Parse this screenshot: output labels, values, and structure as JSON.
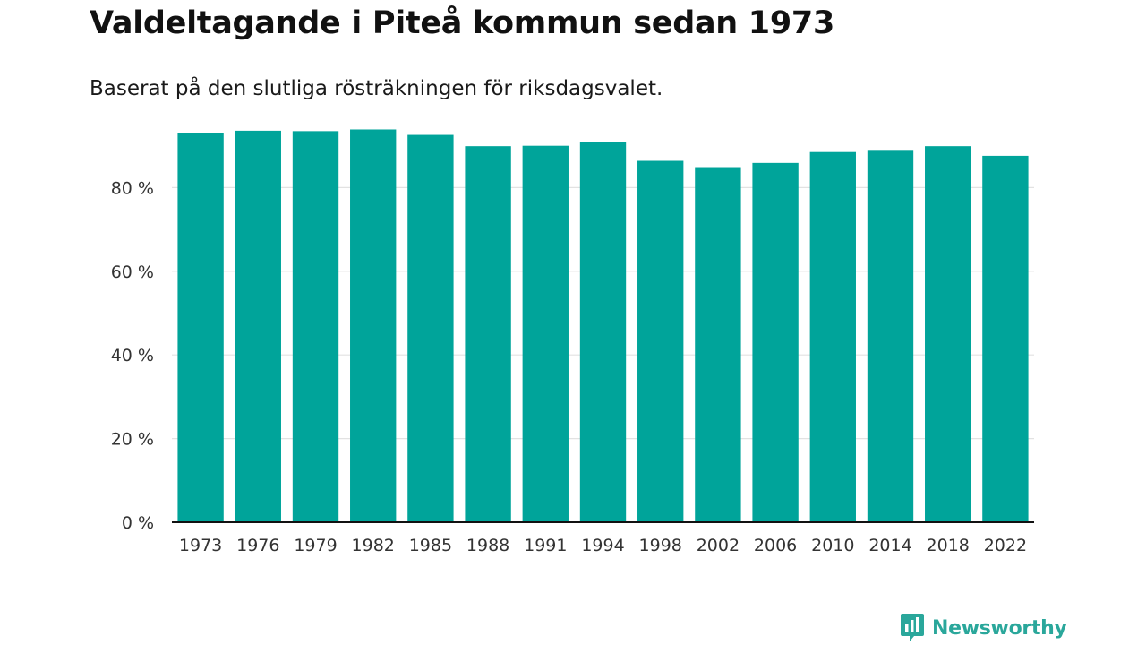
{
  "colors": {
    "bar": "#00a49a",
    "grid": "#e2e2e2",
    "axis": "#111111",
    "brand": "#2aa79b"
  },
  "brand": {
    "name": "Newsworthy",
    "icon": "bar-chart-speech-bubble-icon"
  },
  "chart_data": {
    "type": "bar",
    "title": "Valdeltagande i Piteå kommun sedan 1973",
    "subtitle": "Baserat på den slutliga rösträkningen för riksdagsvalet.",
    "xlabel": "",
    "ylabel": "",
    "ylim": [
      0,
      100
    ],
    "yticks": [
      0,
      20,
      40,
      60,
      80
    ],
    "ytick_labels": [
      "0 %",
      "20 %",
      "40 %",
      "60 %",
      "80 %"
    ],
    "grid": true,
    "categories": [
      "1973",
      "1976",
      "1979",
      "1982",
      "1985",
      "1988",
      "1991",
      "1994",
      "1998",
      "2002",
      "2006",
      "2010",
      "2014",
      "2018",
      "2022"
    ],
    "values": [
      93.0,
      93.6,
      93.5,
      93.9,
      92.6,
      89.9,
      90.0,
      90.8,
      86.4,
      84.9,
      85.9,
      88.5,
      88.8,
      89.9,
      87.6
    ]
  }
}
